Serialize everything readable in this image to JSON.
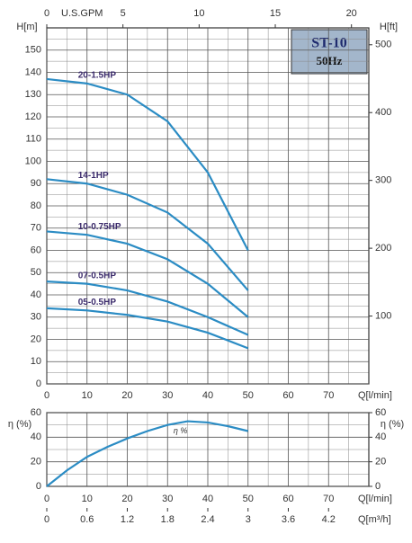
{
  "chart_data": [
    {
      "type": "line",
      "title": "ST-10",
      "subtitle": "50Hz",
      "x_label": "Q[l/min]",
      "y_label": "H[m]",
      "x2_label": "U.S.GPM",
      "y2_label": "H[ft]",
      "x": [
        0,
        10,
        20,
        30,
        40,
        50
      ],
      "xlim": [
        0,
        80
      ],
      "xticks": [
        0,
        10,
        20,
        30,
        40,
        50,
        60,
        70
      ],
      "ylim": [
        0,
        160
      ],
      "yticks": [
        0,
        10,
        20,
        30,
        40,
        50,
        60,
        70,
        80,
        90,
        100,
        110,
        120,
        130,
        140,
        150
      ],
      "x2lim": [
        0,
        21.14
      ],
      "x2ticks": [
        0,
        5,
        10,
        15,
        20
      ],
      "y2lim": [
        0,
        524.9
      ],
      "y2ticks": [
        100,
        200,
        300,
        400,
        500
      ],
      "grid": true,
      "series": [
        {
          "name": "20-1.5HP",
          "color": "#2b8cc4",
          "values": [
            137,
            135,
            130,
            118,
            95,
            60
          ]
        },
        {
          "name": "14-1HP",
          "color": "#2b8cc4",
          "values": [
            92,
            90,
            85,
            77,
            63,
            42
          ]
        },
        {
          "name": "10-0.75HP",
          "color": "#2b8cc4",
          "values": [
            68.5,
            67,
            63,
            56,
            45,
            30
          ]
        },
        {
          "name": "07-0.5HP",
          "color": "#2b8cc4",
          "values": [
            46,
            45,
            42,
            37,
            30,
            22
          ]
        },
        {
          "name": "05-0.5HP",
          "color": "#2b8cc4",
          "values": [
            34,
            33,
            31,
            28,
            23,
            16
          ]
        }
      ]
    },
    {
      "type": "line",
      "x_label": "Q[l/min]",
      "x2_label": "Q[m³/h]",
      "y_label": "η (%)",
      "y2_label": "η (%)",
      "x": [
        0,
        5,
        10,
        15,
        20,
        25,
        30,
        35,
        40,
        45,
        50
      ],
      "xlim": [
        0,
        80
      ],
      "xticks": [
        0,
        10,
        20,
        30,
        40,
        50,
        60,
        70
      ],
      "x2lim": [
        0,
        4.8
      ],
      "x2ticks": [
        0,
        0.6,
        1.2,
        1.8,
        2.4,
        3,
        3.6,
        4.2
      ],
      "ylim": [
        0,
        60
      ],
      "yticks": [
        0,
        20,
        40,
        60
      ],
      "y2ticks": [
        0,
        20,
        40,
        60
      ],
      "grid": true,
      "series": [
        {
          "name": "η %",
          "color": "#2b8cc4",
          "values": [
            0,
            13,
            24,
            32,
            39,
            45,
            50,
            53,
            52,
            49,
            45
          ]
        }
      ]
    }
  ]
}
